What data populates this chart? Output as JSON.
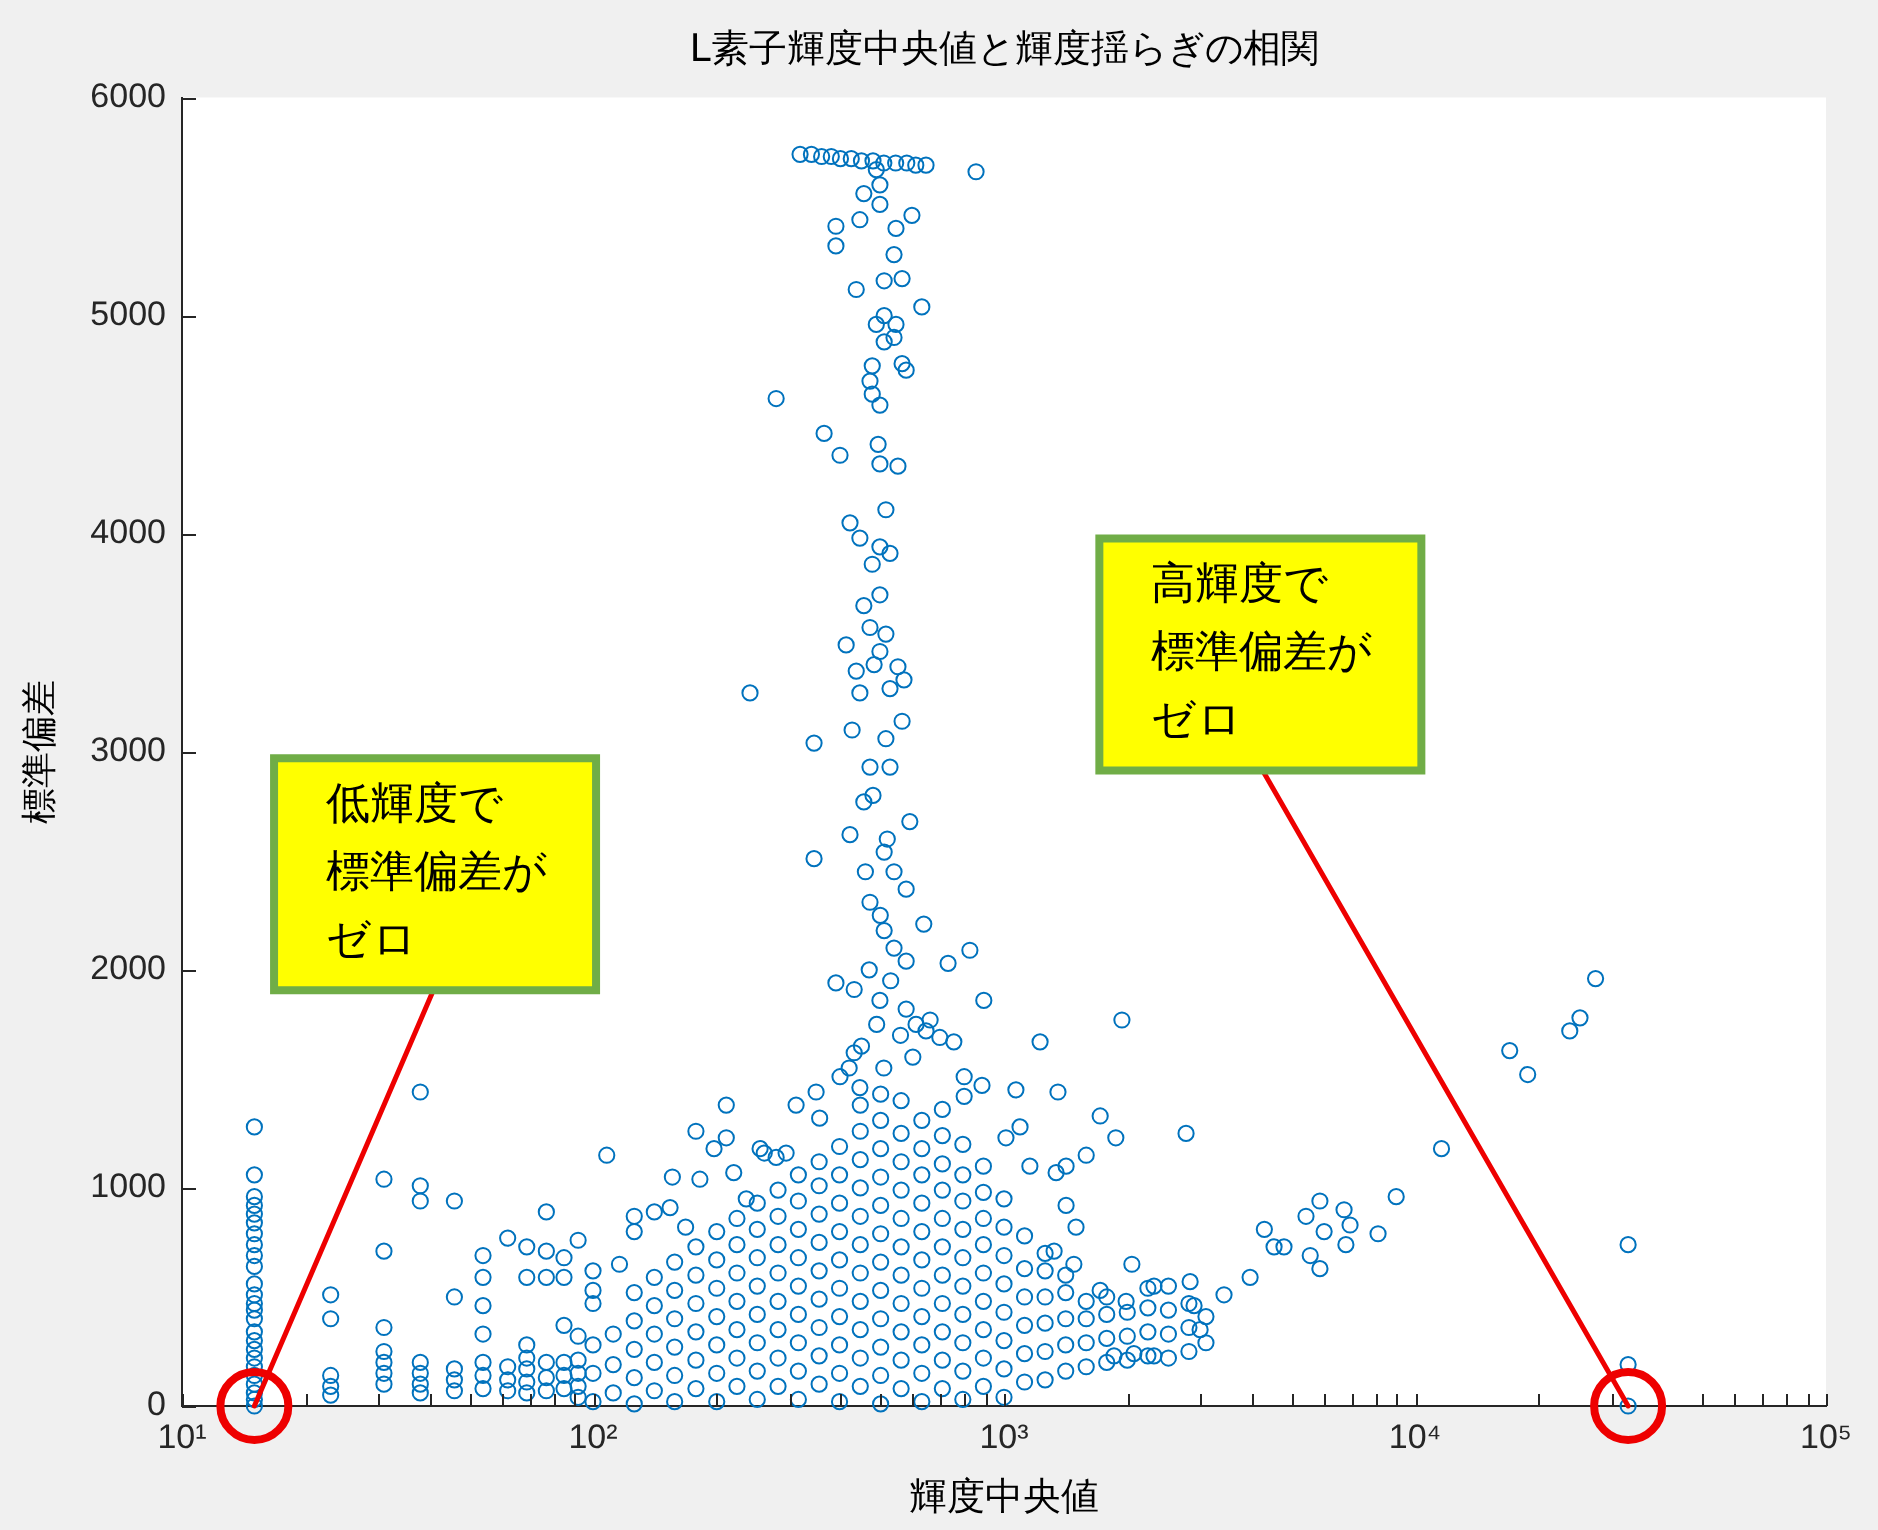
{
  "chart_data": {
    "type": "scatter",
    "title": "L素子輝度中央値と輝度揺らぎの相関",
    "xlabel": "輝度中央値",
    "ylabel": "標準偏差",
    "log": "x",
    "marker": "circle",
    "color": "#0072bd",
    "xlim": [
      10,
      100000
    ],
    "ylim": [
      0,
      6000
    ],
    "xticks": [
      {
        "value": 10,
        "label": "10¹"
      },
      {
        "value": 20,
        "label": null
      },
      {
        "value": 30,
        "label": null
      },
      {
        "value": 40,
        "label": null
      },
      {
        "value": 50,
        "label": null
      },
      {
        "value": 60,
        "label": null
      },
      {
        "value": 70,
        "label": null
      },
      {
        "value": 80,
        "label": null
      },
      {
        "value": 90,
        "label": null
      },
      {
        "value": 100,
        "label": "10²"
      },
      {
        "value": 200,
        "label": null
      },
      {
        "value": 300,
        "label": null
      },
      {
        "value": 400,
        "label": null
      },
      {
        "value": 500,
        "label": null
      },
      {
        "value": 600,
        "label": null
      },
      {
        "value": 700,
        "label": null
      },
      {
        "value": 800,
        "label": null
      },
      {
        "value": 900,
        "label": null
      },
      {
        "value": 1000,
        "label": "10³"
      },
      {
        "value": 2000,
        "label": null
      },
      {
        "value": 3000,
        "label": null
      },
      {
        "value": 4000,
        "label": null
      },
      {
        "value": 5000,
        "label": null
      },
      {
        "value": 6000,
        "label": null
      },
      {
        "value": 7000,
        "label": null
      },
      {
        "value": 8000,
        "label": null
      },
      {
        "value": 9000,
        "label": null
      },
      {
        "value": 10000,
        "label": "10⁴"
      },
      {
        "value": 20000,
        "label": null
      },
      {
        "value": 30000,
        "label": null
      },
      {
        "value": 40000,
        "label": null
      },
      {
        "value": 50000,
        "label": null
      },
      {
        "value": 60000,
        "label": null
      },
      {
        "value": 70000,
        "label": null
      },
      {
        "value": 80000,
        "label": null
      },
      {
        "value": 90000,
        "label": null
      },
      {
        "value": 100000,
        "label": "10⁵"
      }
    ],
    "yticks": [
      0,
      1000,
      2000,
      3000,
      4000,
      5000,
      6000
    ],
    "x": [
      15,
      15,
      15,
      15,
      15,
      15,
      15,
      15,
      15,
      15,
      15,
      15,
      15,
      15,
      15,
      15,
      15,
      15,
      15,
      15,
      15,
      15,
      15,
      15,
      15,
      23,
      23,
      23,
      23,
      23,
      31,
      31,
      31,
      31,
      31,
      31,
      31,
      38,
      38,
      38,
      38,
      38,
      38,
      38,
      46,
      46,
      46,
      46,
      46,
      54,
      54,
      54,
      54,
      54,
      54,
      54,
      62,
      62,
      62,
      62,
      69,
      69,
      69,
      69,
      69,
      69,
      69,
      77,
      77,
      77,
      77,
      77,
      77,
      85,
      85,
      85,
      85,
      85,
      85,
      92,
      92,
      92,
      92,
      92,
      92,
      100,
      100,
      100,
      108,
      116,
      126,
      126,
      141,
      156,
      178,
      197,
      211,
      211,
      220,
      261,
      295,
      312,
      349,
      154,
      168,
      182,
      236,
      255,
      279,
      356,
      399,
      432,
      446,
      611,
      646,
      698,
      800,
      800,
      884,
      1011,
      1069,
      1094,
      1156,
      1339,
      1353,
      1416,
      1416,
      1497,
      1324,
      1479,
      1585,
      1714,
      1714,
      1871,
      1936,
      1982,
      2047,
      2070,
      1852,
      2317,
      2317,
      2773,
      2837,
      2900,
      3000,
      1224,
      319,
      340,
      360,
      380,
      400,
      425,
      450,
      480,
      510,
      545,
      580,
      610,
      646,
      855,
      489,
      456,
      499,
      499,
      390,
      390,
      446,
      546,
      597,
      540,
      437,
      511,
      565,
      631,
      511,
      489,
      546,
      511,
      540,
      565,
      578,
      478,
      472,
      478,
      499,
      279,
      365,
      399,
      494,
      499,
      552,
      516,
      422,
      446,
      499,
      528,
      478,
      499,
      456,
      472,
      516,
      413,
      499,
      437,
      483,
      552,
      571,
      528,
      446,
      241,
      565,
      427,
      516,
      345,
      472,
      528,
      456,
      590,
      422,
      511,
      345,
      540,
      578,
      472,
      638,
      511,
      826,
      731,
      578,
      390,
      432,
      499,
      893,
      578,
      661,
      755,
      480,
      520,
      460,
      500,
      540,
      470,
      530,
      560,
      490,
      450,
      600,
      420,
      510,
      27500,
      25200,
      23800,
      17000,
      18800,
      11600,
      9000,
      8130,
      6720,
      5870,
      5430,
      6010,
      6950,
      5870,
      5560,
      6790,
      4800,
      33000,
      33000,
      33000,
      4300,
      3430,
      3970,
      4540,
      100,
      100,
      100,
      112,
      112,
      112,
      126,
      126,
      126,
      126,
      126,
      141,
      141,
      141,
      141,
      141,
      158,
      158,
      158,
      158,
      158,
      158,
      178,
      178,
      178,
      178,
      178,
      178,
      200,
      200,
      200,
      200,
      200,
      200,
      200,
      224,
      224,
      224,
      224,
      224,
      224,
      224,
      251,
      251,
      251,
      251,
      251,
      251,
      251,
      251,
      282,
      282,
      282,
      282,
      282,
      282,
      282,
      282,
      316,
      316,
      316,
      316,
      316,
      316,
      316,
      316,
      316,
      355,
      355,
      355,
      355,
      355,
      355,
      355,
      355,
      355,
      398,
      398,
      398,
      398,
      398,
      398,
      398,
      398,
      398,
      398,
      447,
      447,
      447,
      447,
      447,
      447,
      447,
      447,
      447,
      447,
      447,
      501,
      501,
      501,
      501,
      501,
      501,
      501,
      501,
      501,
      501,
      501,
      501,
      562,
      562,
      562,
      562,
      562,
      562,
      562,
      562,
      562,
      562,
      562,
      631,
      631,
      631,
      631,
      631,
      631,
      631,
      631,
      631,
      631,
      631,
      708,
      708,
      708,
      708,
      708,
      708,
      708,
      708,
      708,
      708,
      708,
      794,
      794,
      794,
      794,
      794,
      794,
      794,
      794,
      794,
      794,
      891,
      891,
      891,
      891,
      891,
      891,
      891,
      891,
      891,
      1000,
      1000,
      1000,
      1000,
      1000,
      1000,
      1000,
      1000,
      1122,
      1122,
      1122,
      1122,
      1122,
      1122,
      1259,
      1259,
      1259,
      1259,
      1259,
      1259,
      1413,
      1413,
      1413,
      1413,
      1413,
      1585,
      1585,
      1585,
      1585,
      1778,
      1778,
      1778,
      1778,
      1995,
      1995,
      1995,
      2239,
      2239,
      2239,
      2239,
      2512,
      2512,
      2512,
      2512,
      2818,
      2818,
      2818,
      3100,
      3100
    ],
    "values": [
      1280,
      1060,
      960,
      920,
      880,
      840,
      790,
      740,
      690,
      640,
      560,
      510,
      470,
      440,
      400,
      340,
      300,
      260,
      220,
      180,
      140,
      100,
      60,
      30,
      0,
      510,
      400,
      140,
      90,
      50,
      1040,
      710,
      360,
      250,
      200,
      150,
      100,
      1440,
      1010,
      940,
      200,
      150,
      100,
      60,
      940,
      500,
      170,
      120,
      70,
      690,
      590,
      460,
      330,
      200,
      140,
      80,
      770,
      180,
      120,
      70,
      730,
      590,
      280,
      220,
      170,
      110,
      60,
      890,
      710,
      590,
      200,
      130,
      70,
      680,
      590,
      370,
      200,
      140,
      80,
      760,
      320,
      210,
      150,
      90,
      40,
      620,
      530,
      470,
      1150,
      650,
      870,
      800,
      890,
      1050,
      1260,
      1180,
      1380,
      1230,
      1070,
      1160,
      1160,
      1380,
      1440,
      910,
      820,
      1040,
      950,
      1180,
      1140,
      1320,
      1510,
      1620,
      1460,
      1750,
      1720,
      1690,
      1420,
      1510,
      1470,
      1230,
      1450,
      1280,
      1100,
      1070,
      1440,
      920,
      1100,
      820,
      710,
      650,
      1150,
      1330,
      530,
      1230,
      1770,
      480,
      650,
      240,
      230,
      550,
      230,
      1250,
      570,
      460,
      350,
      1670,
      5740,
      5740,
      5730,
      5730,
      5720,
      5720,
      5710,
      5710,
      5700,
      5700,
      5700,
      5690,
      5690,
      5660,
      5670,
      5560,
      5600,
      5510,
      5410,
      5320,
      5440,
      5400,
      5460,
      5280,
      5120,
      5160,
      5170,
      5040,
      5000,
      4960,
      4960,
      4880,
      4900,
      4780,
      4750,
      4770,
      4700,
      4640,
      4590,
      4620,
      4460,
      4360,
      4410,
      4320,
      4310,
      4110,
      4050,
      3980,
      3940,
      3910,
      3860,
      3720,
      3670,
      3570,
      3540,
      3490,
      3460,
      3370,
      3400,
      3390,
      3330,
      3290,
      3270,
      3270,
      3140,
      3100,
      3060,
      3040,
      2930,
      2930,
      2770,
      2680,
      2620,
      2540,
      2510,
      2450,
      2370,
      2310,
      2210,
      2180,
      2090,
      2030,
      2040,
      1940,
      1910,
      1860,
      1860,
      1820,
      1770,
      1670,
      2800,
      2600,
      2450,
      2250,
      2100,
      2000,
      1950,
      1700,
      1750,
      1650,
      1600,
      1550,
      1550,
      1960,
      1780,
      1720,
      1630,
      1520,
      1180,
      960,
      790,
      900,
      940,
      870,
      800,
      830,
      630,
      690,
      740,
      730,
      740,
      190,
      0,
      810,
      510,
      590,
      730,
      20,
      150,
      280,
      60,
      190,
      330,
      10,
      130,
      260,
      390,
      520,
      70,
      200,
      330,
      460,
      590,
      20,
      140,
      270,
      400,
      530,
      660,
      80,
      210,
      340,
      470,
      600,
      730,
      20,
      150,
      280,
      410,
      540,
      670,
      800,
      90,
      220,
      350,
      480,
      610,
      740,
      860,
      30,
      160,
      290,
      420,
      550,
      680,
      810,
      930,
      90,
      220,
      350,
      480,
      610,
      740,
      870,
      990,
      30,
      160,
      290,
      420,
      550,
      680,
      810,
      940,
      1060,
      100,
      230,
      360,
      490,
      620,
      750,
      880,
      1010,
      1120,
      20,
      150,
      280,
      410,
      540,
      670,
      800,
      930,
      1060,
      1190,
      90,
      220,
      350,
      480,
      610,
      740,
      870,
      1000,
      1130,
      1260,
      1380,
      10,
      140,
      270,
      400,
      530,
      660,
      790,
      920,
      1050,
      1180,
      1310,
      1430,
      80,
      210,
      340,
      470,
      600,
      730,
      860,
      990,
      1120,
      1250,
      1400,
      20,
      150,
      280,
      410,
      540,
      670,
      800,
      930,
      1060,
      1180,
      1310,
      80,
      210,
      340,
      470,
      600,
      730,
      860,
      990,
      1110,
      1240,
      1360,
      30,
      160,
      290,
      420,
      550,
      680,
      810,
      940,
      1060,
      1200,
      90,
      220,
      350,
      480,
      610,
      740,
      860,
      980,
      1100,
      40,
      170,
      300,
      430,
      560,
      690,
      820,
      950,
      110,
      240,
      370,
      500,
      630,
      780,
      120,
      250,
      380,
      500,
      620,
      700,
      160,
      280,
      400,
      520,
      600,
      180,
      290,
      400,
      480,
      200,
      310,
      420,
      500,
      210,
      320,
      430,
      230,
      340,
      450,
      540,
      220,
      330,
      440,
      550,
      250,
      360,
      470,
      290,
      410
    ],
    "annotations": [
      {
        "text": "低輝度で標準偏差がゼロ",
        "x": 15,
        "y": 0
      },
      {
        "text": "高輝度で標準偏差がゼロ",
        "x": 33000,
        "y": 0
      }
    ]
  }
}
